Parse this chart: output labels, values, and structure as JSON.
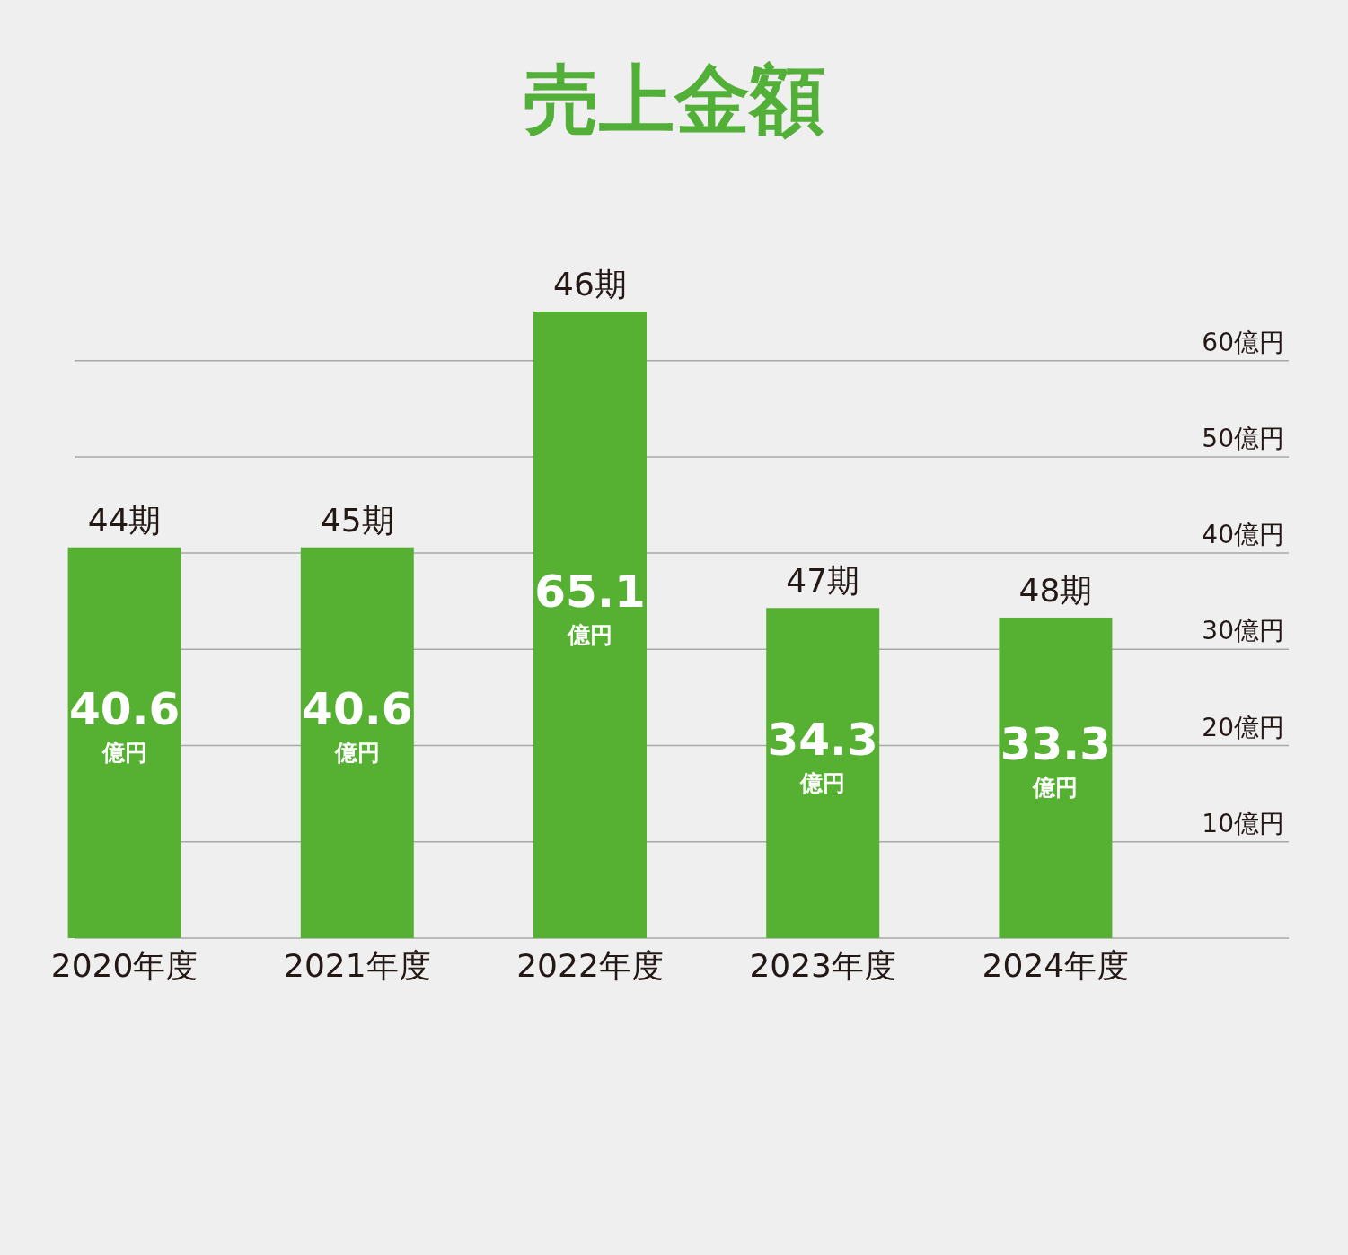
{
  "chart_data": {
    "type": "bar",
    "title": "売上金額",
    "categories": [
      "2020年度",
      "2021年度",
      "2022年度",
      "2023年度",
      "2024年度"
    ],
    "values": [
      40.6,
      40.6,
      65.1,
      34.3,
      33.3
    ],
    "value_labels": [
      "40.6億円",
      "40.6億円",
      "65.1億円",
      "34.3億円",
      "33.3億円"
    ],
    "color": "#56b133",
    "yticks": [
      {
        "value": 0,
        "label": null
      },
      {
        "value": 10,
        "label": "10億円"
      },
      {
        "value": 20,
        "label": "20億円"
      },
      {
        "value": 30,
        "label": "30億円"
      },
      {
        "value": 40,
        "label": "40億円"
      },
      {
        "value": 50,
        "label": "50億円"
      },
      {
        "value": 60,
        "label": "60億円"
      }
    ],
    "ylim": [
      0,
      65.1
    ],
    "grid": "y",
    "annotations": [
      {
        "text": "44期",
        "x": "2020年度",
        "y": 40.6
      },
      {
        "text": "45期",
        "x": "2021年度",
        "y": 40.6
      },
      {
        "text": "46期",
        "x": "2022年度",
        "y": 65.1
      },
      {
        "text": "47期",
        "x": "2023年度",
        "y": 34.3
      },
      {
        "text": "48期",
        "x": "2024年度",
        "y": 33.3
      }
    ]
  }
}
